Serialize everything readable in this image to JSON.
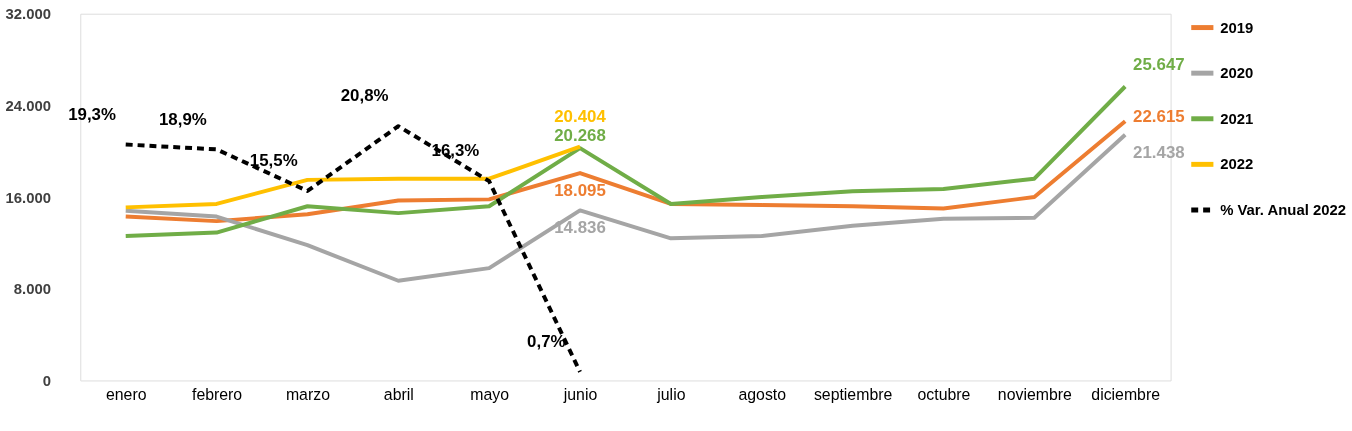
{
  "chart_data": {
    "type": "line",
    "categories": [
      "enero",
      "febrero",
      "marzo",
      "abril",
      "mayo",
      "junio",
      "julio",
      "agosto",
      "septiembre",
      "octubre",
      "noviembre",
      "diciembre"
    ],
    "ylim": [
      0,
      32000
    ],
    "yticks": [
      {
        "value": 0,
        "label": "0"
      },
      {
        "value": 8000,
        "label": "8.000"
      },
      {
        "value": 16000,
        "label": "16.000"
      },
      {
        "value": 24000,
        "label": "24.000"
      },
      {
        "value": 32000,
        "label": "32.000"
      }
    ],
    "y2lim": [
      0,
      30
    ],
    "grid": false,
    "legend": "right",
    "series": [
      {
        "name": "2019",
        "color": "#ed7d31",
        "line_style": "solid",
        "values": [
          14300,
          13900,
          14500,
          15700,
          15800,
          18095,
          15400,
          15300,
          15200,
          15000,
          16000,
          22615
        ],
        "value_labels": [
          null,
          null,
          null,
          null,
          null,
          "18.095",
          null,
          null,
          null,
          null,
          null,
          "22.615"
        ]
      },
      {
        "name": "2020",
        "color": "#a5a5a5",
        "line_style": "solid",
        "values": [
          14800,
          14300,
          11800,
          8700,
          9800,
          14836,
          12400,
          12600,
          13500,
          14100,
          14200,
          21438
        ],
        "value_labels": [
          null,
          null,
          null,
          null,
          null,
          "14.836",
          null,
          null,
          null,
          null,
          null,
          "21.438"
        ]
      },
      {
        "name": "2021",
        "color": "#70ad47",
        "line_style": "solid",
        "values": [
          12600,
          12900,
          15200,
          14600,
          15200,
          20268,
          15400,
          16000,
          16500,
          16700,
          17600,
          25647
        ],
        "value_labels": [
          null,
          null,
          null,
          null,
          null,
          "20.268",
          null,
          null,
          null,
          null,
          null,
          "25.647"
        ]
      },
      {
        "name": "2022",
        "color": "#ffc000",
        "line_style": "solid",
        "values": [
          15100,
          15400,
          17500,
          17600,
          17600,
          20404,
          null,
          null,
          null,
          null,
          null,
          null
        ],
        "value_labels": [
          null,
          null,
          null,
          null,
          null,
          "20.404",
          null,
          null,
          null,
          null,
          null,
          null
        ]
      },
      {
        "name": "% Var. Anual 2022",
        "color": "#000000",
        "line_style": "dashed",
        "axis": "y2",
        "values": [
          19.3,
          18.9,
          15.5,
          20.8,
          16.3,
          0.7,
          null,
          null,
          null,
          null,
          null,
          null
        ],
        "value_labels": [
          "19,3%",
          "18,9%",
          "15,5%",
          "20,8%",
          "16,3%",
          "0,7%",
          null,
          null,
          null,
          null,
          null,
          null
        ]
      }
    ]
  }
}
